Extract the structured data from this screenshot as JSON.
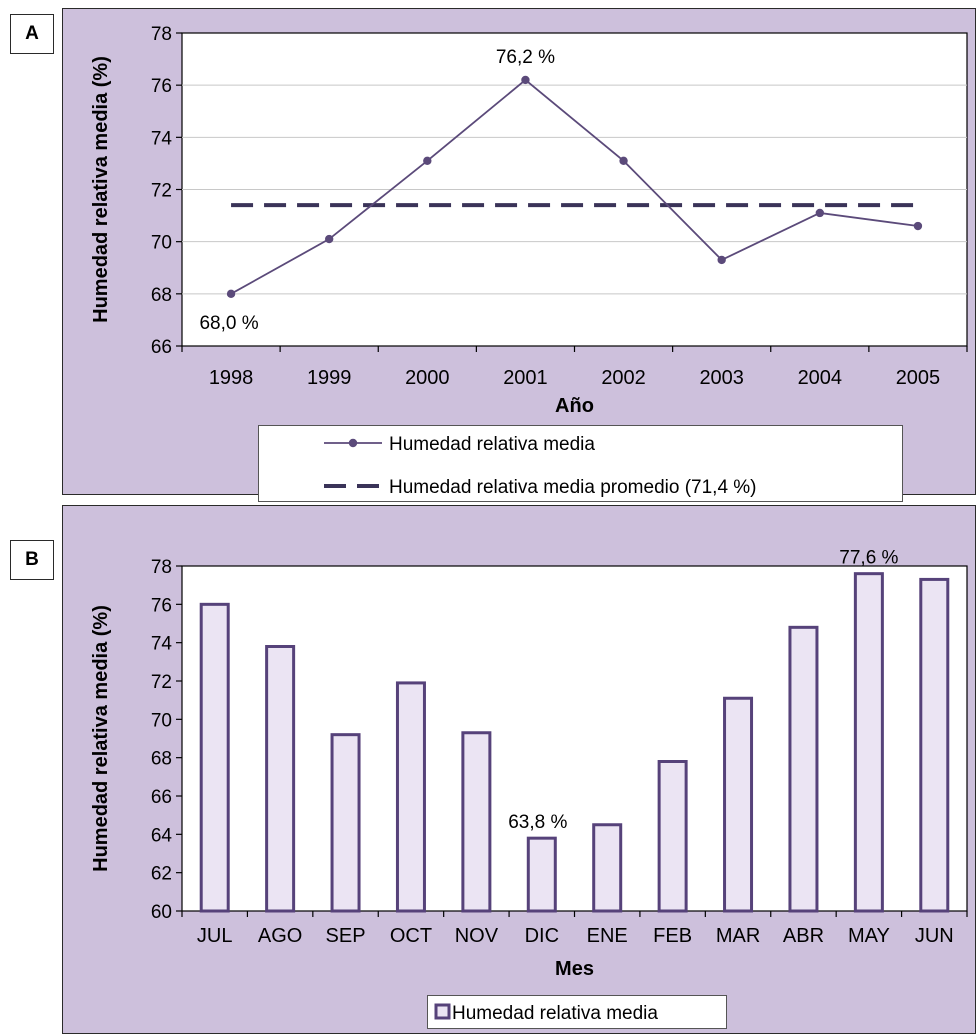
{
  "panels": {
    "a_label": "A",
    "b_label": "B"
  },
  "chart_data": [
    {
      "type": "line",
      "panel": "A",
      "xlabel": "Año",
      "ylabel": "Humedad relativa media (%)",
      "categories": [
        "1998",
        "1999",
        "2000",
        "2001",
        "2002",
        "2003",
        "2004",
        "2005"
      ],
      "ylim": [
        66,
        78
      ],
      "yticks": [
        "66",
        "68",
        "70",
        "72",
        "74",
        "76",
        "78"
      ],
      "grid": "horizontal",
      "series": [
        {
          "name": "Humedad relativa media",
          "values": [
            68.0,
            70.1,
            73.1,
            76.2,
            73.1,
            69.3,
            71.1,
            70.6
          ],
          "color": "#5b4a7a"
        },
        {
          "name": "Humedad relativa media promedio (71,4 %)",
          "values": [
            71.4,
            71.4,
            71.4,
            71.4,
            71.4,
            71.4,
            71.4,
            71.4
          ],
          "color": "#3a3358",
          "style": "dashed"
        }
      ],
      "annotations": [
        {
          "index": 0,
          "text": "68,0 %"
        },
        {
          "index": 3,
          "text": "76,2 %"
        }
      ],
      "legend": "bottom"
    },
    {
      "type": "bar",
      "panel": "B",
      "xlabel": "Mes",
      "ylabel": "Humedad relativa media (%)",
      "categories": [
        "JUL",
        "AGO",
        "SEP",
        "OCT",
        "NOV",
        "DIC",
        "ENE",
        "FEB",
        "MAR",
        "ABR",
        "MAY",
        "JUN"
      ],
      "ylim": [
        60,
        78
      ],
      "yticks": [
        "60",
        "62",
        "64",
        "66",
        "68",
        "70",
        "72",
        "74",
        "76",
        "78"
      ],
      "grid": "none",
      "series": [
        {
          "name": "Humedad relativa media",
          "values": [
            76.0,
            73.8,
            69.2,
            71.9,
            69.3,
            63.8,
            64.5,
            67.8,
            71.1,
            74.8,
            77.6,
            77.3
          ],
          "fill": "#ebe4f3",
          "stroke": "#56427a"
        }
      ],
      "annotations": [
        {
          "index": 5,
          "text": "63,8 %"
        },
        {
          "index": 10,
          "text": "77,6 %"
        }
      ],
      "legend": "bottom"
    }
  ]
}
